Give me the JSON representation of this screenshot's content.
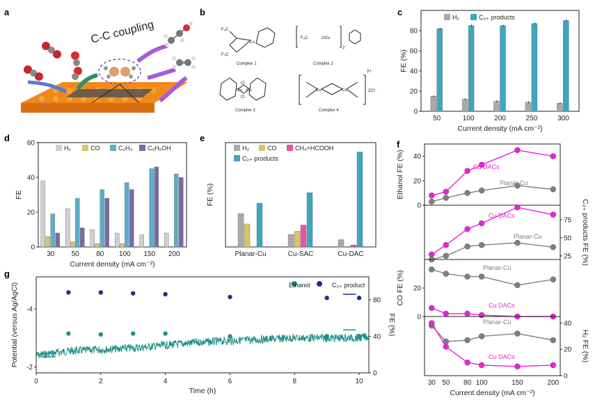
{
  "labels": {
    "a": "a",
    "b": "b",
    "c": "c",
    "d": "d",
    "e": "e",
    "f": "f",
    "g": "g"
  },
  "panel_a": {
    "text": "C-C coupling"
  },
  "panel_b": {
    "complex1": "Complex 1",
    "complex2": "Complex 2",
    "complex3": "Complex 3",
    "complex4": "Complex 4",
    "f3c_top": "F₃C",
    "f3c_bot": "F₃C",
    "f3c_2": "F₃C",
    "cu1": "Cu",
    "cu2": "OCu",
    "cu3a": "Cu",
    "cu3b": "Cu",
    "cl1": "Cl",
    "cl2": "Cl",
    "cu4a": "Cu",
    "cu4b": "Cu",
    "charge": "2+",
    "chloride": "2Cl⁻",
    "sub2": "2"
  },
  "colors": {
    "h2": "#a9a9a9",
    "co": "#d8c46a",
    "c2h4": "#5bb0c7",
    "c2h5oh": "#7a68a8",
    "ch4": "#e8569a",
    "c2": "#3fa6bf",
    "teal": "#1f8f8a",
    "navy": "#1f2f8f",
    "magenta": "#ee1ee0",
    "gray": "#7f7f7f"
  },
  "chart_data": [
    {
      "id": "c",
      "type": "bar",
      "title": "",
      "xlabel": "Current density (mA cm⁻²)",
      "ylabel": "FE (%)",
      "categories": [
        "50",
        "100",
        "200",
        "250",
        "300"
      ],
      "ylim": [
        0,
        100
      ],
      "yticks": [
        0,
        20,
        40,
        60,
        80
      ],
      "series": [
        {
          "name": "H₂",
          "values": [
            15,
            12,
            10,
            9,
            8
          ],
          "errors": [
            1,
            1,
            1,
            1,
            1
          ]
        },
        {
          "name": "C₂₊ products",
          "values": [
            82,
            85,
            85,
            87,
            90
          ],
          "errors": [
            1,
            1,
            1,
            1,
            1
          ]
        }
      ]
    },
    {
      "id": "d",
      "type": "bar",
      "title": "",
      "xlabel": "Current density (mA cm⁻²)",
      "ylabel": "FE",
      "categories": [
        "30",
        "50",
        "80",
        "100",
        "150",
        "200"
      ],
      "ylim": [
        0,
        60
      ],
      "yticks": [
        0,
        20,
        40,
        60
      ],
      "series": [
        {
          "name": "H₂",
          "values": [
            38,
            22,
            10,
            8,
            7,
            8
          ]
        },
        {
          "name": "CO",
          "values": [
            6,
            3,
            2,
            2,
            0,
            0
          ]
        },
        {
          "name": "C₂H₄",
          "values": [
            19,
            28,
            33,
            37,
            45,
            42
          ]
        },
        {
          "name": "C₂H₅OH",
          "values": [
            8,
            11,
            28,
            33,
            46,
            40
          ]
        }
      ]
    },
    {
      "id": "e",
      "type": "bar",
      "title": "",
      "xlabel": "",
      "ylabel": "FE (%)",
      "categories": [
        "Planar-Cu",
        "Cu-SAC",
        "Cu-DAC"
      ],
      "ylim": [
        0,
        100
      ],
      "series": [
        {
          "name": "H₂",
          "values": [
            32,
            12,
            7
          ]
        },
        {
          "name": "CO",
          "values": [
            22,
            15,
            0
          ]
        },
        {
          "name": "CH₄+HCOOH",
          "values": [
            0,
            21,
            2
          ]
        },
        {
          "name": "C₂₊ products",
          "values": [
            42,
            52,
            91
          ]
        }
      ]
    },
    {
      "id": "f",
      "type": "line",
      "xlabel": "Current density (mA cm⁻²)",
      "x": [
        30,
        50,
        80,
        100,
        150,
        200
      ],
      "subplots": [
        {
          "ylabel": "Ethanol FE (%)",
          "ylim": [
            0,
            50
          ],
          "yticks": [
            0,
            20,
            40
          ],
          "side": "left",
          "series": [
            {
              "name": "Cu DACs",
              "values": [
                8,
                11,
                28,
                33,
                45,
                40
              ]
            },
            {
              "name": "Planar-Cu",
              "values": [
                3,
                6,
                10,
                12,
                16,
                13
              ]
            }
          ]
        },
        {
          "ylabel": "C₂₊ products FE (%)",
          "ylim": [
            20,
            95
          ],
          "yticks": [
            25,
            50,
            75
          ],
          "side": "right",
          "series": [
            {
              "name": "Cu DACs",
              "values": [
                27,
                40,
                62,
                70,
                92,
                82
              ]
            },
            {
              "name": "Planar-Cu",
              "values": [
                20,
                25,
                38,
                40,
                43,
                37
              ]
            }
          ]
        },
        {
          "ylabel": "CO FE (%)",
          "ylim": [
            0,
            40
          ],
          "yticks": [
            0,
            20
          ],
          "side": "left",
          "series": [
            {
              "name": "Planar-Cu",
              "values": [
                33,
                30,
                28,
                28,
                22,
                26
              ]
            },
            {
              "name": "Cu DACs",
              "values": [
                6,
                2,
                2,
                1,
                0,
                0
              ]
            }
          ]
        },
        {
          "ylabel": "H₂ FE (%)",
          "ylim": [
            0,
            45
          ],
          "yticks": [
            0,
            20,
            40
          ],
          "side": "right",
          "series": [
            {
              "name": "Planar-Cu",
              "values": [
                38,
                26,
                27,
                30,
                32,
                27
              ]
            },
            {
              "name": "Cu DACs",
              "values": [
                40,
                22,
                10,
                8,
                7,
                8
              ]
            }
          ]
        }
      ]
    },
    {
      "id": "g",
      "type": "line+scatter",
      "xlabel": "Time (h)",
      "ylabel": "Potential (versus Ag/AgCl)",
      "ylabel_right": "FE (%)",
      "xlim": [
        0,
        10.3
      ],
      "xticks": [
        0,
        2,
        4,
        6,
        8,
        10
      ],
      "ylim": [
        -1.8,
        -5.1
      ],
      "yticks": [
        -2,
        -4
      ],
      "yticks_right": [
        0,
        40,
        80
      ],
      "potential_trace": {
        "t": [
          0,
          1,
          2,
          3,
          4,
          5,
          6,
          7,
          8,
          9,
          10,
          10.3
        ],
        "v": [
          -2.4,
          -2.55,
          -2.6,
          -2.65,
          -2.75,
          -2.85,
          -2.9,
          -2.95,
          -3.0,
          -3.0,
          -3.0,
          -3.05
        ]
      },
      "series": [
        {
          "name": "C₂₊ product",
          "t": [
            1,
            2,
            3,
            4,
            6,
            9,
            10
          ],
          "fe": [
            88,
            88,
            87,
            86,
            83,
            82,
            82
          ]
        },
        {
          "name": "Ethanol",
          "t": [
            1,
            2,
            3,
            4,
            6,
            9,
            10
          ],
          "fe": [
            43,
            42,
            43,
            43,
            40,
            40,
            40
          ]
        }
      ]
    }
  ],
  "legends": {
    "c": {
      "h2": "H₂",
      "c2": "C₂₊ products"
    },
    "d": {
      "h2": "H₂",
      "co": "CO",
      "c2h4": "C₂H₄",
      "c2h5oh": "C₂H₅OH"
    },
    "e": {
      "h2": "H₂",
      "co": "CO",
      "ch4": "CH₄+HCOOH",
      "c2": "C₂₊ products"
    },
    "g": {
      "ethanol": "Ethanol",
      "c2": "C₂₊ product"
    }
  },
  "f_labels": {
    "cudacs": "Cu DACs",
    "planar": "Planar-Cu"
  }
}
